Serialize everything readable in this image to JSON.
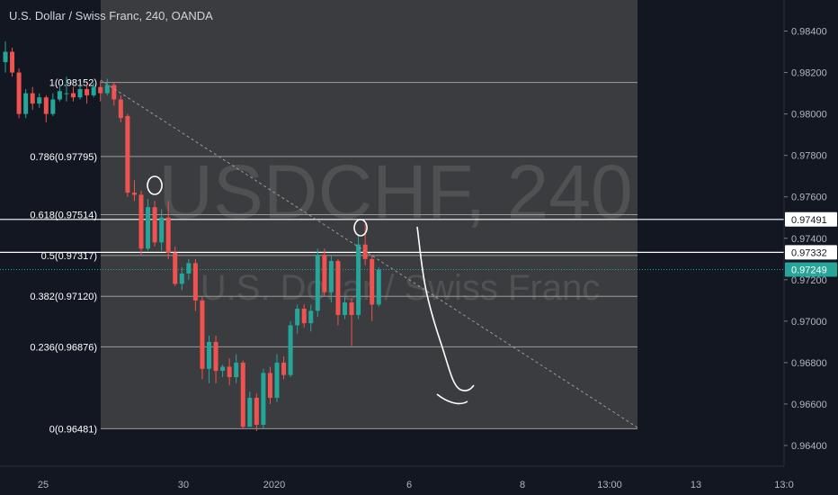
{
  "header": {
    "title": "U.S. Dollar / Swiss Franc, 240, OANDA"
  },
  "watermark": {
    "symbol": "USDCHF, 240",
    "name": "U.S. Dollar / Swiss Franc"
  },
  "colors": {
    "background": "#131722",
    "fib_box": "#4a4a4a",
    "up": "#26a69a",
    "down": "#ef5350",
    "price_line": "#26a69a",
    "axis_text": "#b2b5be",
    "fib_line": "#9b9b9b"
  },
  "chart_data": {
    "type": "candlestick",
    "symbol": "USDCHF",
    "timeframe": "240",
    "ylim": [
      0.963,
      0.9855
    ],
    "y_ticks": [
      "0.98400",
      "0.98200",
      "0.98000",
      "0.97800",
      "0.97600",
      "0.97400",
      "0.97200",
      "0.97000",
      "0.96800",
      "0.96600",
      "0.96400"
    ],
    "x_ticks": [
      "25",
      "30",
      "2020",
      "6",
      "8",
      "13:00",
      "13",
      "13:0"
    ],
    "price_labels": [
      {
        "label": "0.97491",
        "value": 0.97491,
        "style": "white-line"
      },
      {
        "label": "0.97332",
        "value": 0.97332,
        "style": "white-line"
      },
      {
        "label": "0.97249",
        "value": 0.97249,
        "style": "last-price"
      }
    ],
    "fib_levels": [
      {
        "label": "1(0.98152)",
        "value": 0.98152
      },
      {
        "label": "0.786(0.97795)",
        "value": 0.97795
      },
      {
        "label": "0.618(0.97514)",
        "value": 0.97514
      },
      {
        "label": "0.5(0.97317)",
        "value": 0.97317
      },
      {
        "label": "0.382(0.97120)",
        "value": 0.9712
      },
      {
        "label": "0.236(0.96876)",
        "value": 0.96876
      },
      {
        "label": "0(0.96481)",
        "value": 0.96481
      }
    ],
    "candles": [
      [
        0.9825,
        0.983,
        0.9835,
        0.982
      ],
      [
        0.983,
        0.982,
        0.9832,
        0.9818
      ],
      [
        0.982,
        0.98,
        0.9822,
        0.9798
      ],
      [
        0.98,
        0.981,
        0.9812,
        0.9798
      ],
      [
        0.981,
        0.9805,
        0.9813,
        0.9802
      ],
      [
        0.9805,
        0.9808,
        0.981,
        0.9803
      ],
      [
        0.9808,
        0.98,
        0.9809,
        0.9796
      ],
      [
        0.98,
        0.9807,
        0.981,
        0.9799
      ],
      [
        0.9807,
        0.9811,
        0.9814,
        0.9806
      ],
      [
        0.981,
        0.981,
        0.9818,
        0.9806
      ],
      [
        0.981,
        0.9808,
        0.9813,
        0.9806
      ],
      [
        0.9808,
        0.9812,
        0.9814,
        0.9807
      ],
      [
        0.9812,
        0.9809,
        0.9815,
        0.9805
      ],
      [
        0.9809,
        0.9813,
        0.9815,
        0.9808
      ],
      [
        0.9813,
        0.981,
        0.9816,
        0.9806
      ],
      [
        0.981,
        0.9814,
        0.9817,
        0.9809
      ],
      [
        0.9814,
        0.9807,
        0.9815,
        0.9804
      ],
      [
        0.9807,
        0.9798,
        0.9809,
        0.9796
      ],
      [
        0.9799,
        0.9762,
        0.98,
        0.976
      ],
      [
        0.9762,
        0.9761,
        0.9768,
        0.9758
      ],
      [
        0.9761,
        0.9735,
        0.9763,
        0.9732
      ],
      [
        0.9735,
        0.9755,
        0.9759,
        0.9734
      ],
      [
        0.9755,
        0.9738,
        0.9758,
        0.9736
      ],
      [
        0.9738,
        0.975,
        0.9754,
        0.9734
      ],
      [
        0.975,
        0.9733,
        0.9758,
        0.973
      ],
      [
        0.9733,
        0.9718,
        0.9736,
        0.9717
      ],
      [
        0.9718,
        0.9723,
        0.9726,
        0.9715
      ],
      [
        0.9723,
        0.9728,
        0.973,
        0.972
      ],
      [
        0.9728,
        0.971,
        0.973,
        0.9705
      ],
      [
        0.971,
        0.9677,
        0.9712,
        0.9672
      ],
      [
        0.9677,
        0.969,
        0.9693,
        0.967
      ],
      [
        0.969,
        0.9676,
        0.9693,
        0.967
      ],
      [
        0.9676,
        0.9678,
        0.9679,
        0.9673
      ],
      [
        0.9678,
        0.9673,
        0.9682,
        0.9669
      ],
      [
        0.9673,
        0.968,
        0.9684,
        0.967
      ],
      [
        0.968,
        0.9649,
        0.9681,
        0.96481
      ],
      [
        0.9649,
        0.9663,
        0.9666,
        0.965
      ],
      [
        0.9663,
        0.965,
        0.9665,
        0.9647
      ],
      [
        0.965,
        0.9675,
        0.9677,
        0.9648
      ],
      [
        0.9675,
        0.9663,
        0.9678,
        0.966
      ],
      [
        0.9663,
        0.968,
        0.9684,
        0.9661
      ],
      [
        0.968,
        0.9674,
        0.9683,
        0.9672
      ],
      [
        0.9674,
        0.9698,
        0.97,
        0.9673
      ],
      [
        0.9698,
        0.9706,
        0.9708,
        0.9694
      ],
      [
        0.9706,
        0.9699,
        0.9708,
        0.9697
      ],
      [
        0.9699,
        0.9705,
        0.9708,
        0.9695
      ],
      [
        0.9705,
        0.9732,
        0.9735,
        0.9702
      ],
      [
        0.9732,
        0.9714,
        0.9735,
        0.9712
      ],
      [
        0.9714,
        0.9729,
        0.9732,
        0.9709
      ],
      [
        0.9729,
        0.9703,
        0.973,
        0.9698
      ],
      [
        0.9703,
        0.9709,
        0.9712,
        0.9701
      ],
      [
        0.9709,
        0.9703,
        0.9711,
        0.9688
      ],
      [
        0.9703,
        0.9737,
        0.9742,
        0.9701
      ],
      [
        0.9737,
        0.973,
        0.9747,
        0.9727
      ],
      [
        0.973,
        0.9708,
        0.9732,
        0.97
      ],
      [
        0.9708,
        0.97249,
        0.9726,
        0.9707
      ]
    ]
  }
}
